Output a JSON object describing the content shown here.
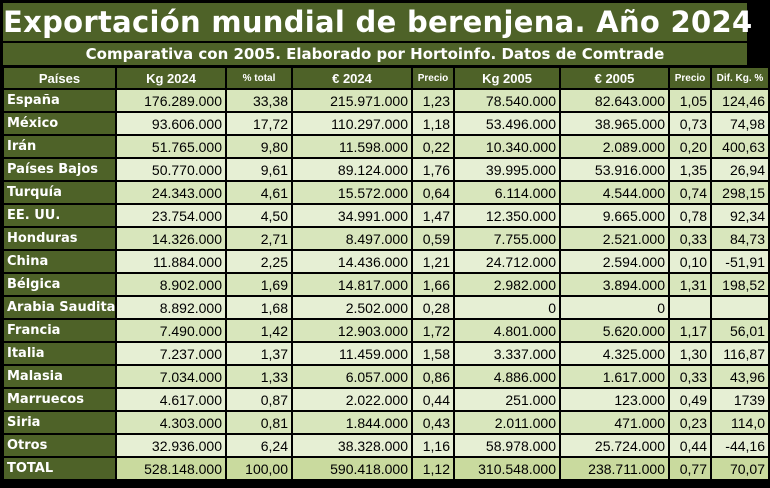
{
  "title": "Exportación mundial de berenjena. Año 2024",
  "subtitle": "Comparativa con 2005. Elaborado por Hortoinfo. Datos de Comtrade",
  "columns": [
    "Países",
    "Kg 2024",
    "% total",
    "€ 2024",
    "Precio",
    "Kg 2005",
    "€ 2005",
    "Precio",
    "Dif. Kg. %"
  ],
  "rows": [
    [
      "España",
      "176.289.000",
      "33,38",
      "215.971.000",
      "1,23",
      "78.540.000",
      "82.643.000",
      "1,05",
      "124,46"
    ],
    [
      "México",
      "93.606.000",
      "17,72",
      "110.297.000",
      "1,18",
      "53.496.000",
      "38.965.000",
      "0,73",
      "74,98"
    ],
    [
      "Irán",
      "51.765.000",
      "9,80",
      "11.598.000",
      "0,22",
      "10.340.000",
      "2.089.000",
      "0,20",
      "400,63"
    ],
    [
      "Países Bajos",
      "50.770.000",
      "9,61",
      "89.124.000",
      "1,76",
      "39.995.000",
      "53.916.000",
      "1,35",
      "26,94"
    ],
    [
      "Turquía",
      "24.343.000",
      "4,61",
      "15.572.000",
      "0,64",
      "6.114.000",
      "4.544.000",
      "0,74",
      "298,15"
    ],
    [
      "EE. UU.",
      "23.754.000",
      "4,50",
      "34.991.000",
      "1,47",
      "12.350.000",
      "9.665.000",
      "0,78",
      "92,34"
    ],
    [
      "Honduras",
      "14.326.000",
      "2,71",
      "8.497.000",
      "0,59",
      "7.755.000",
      "2.521.000",
      "0,33",
      "84,73"
    ],
    [
      "China",
      "11.884.000",
      "2,25",
      "14.436.000",
      "1,21",
      "24.712.000",
      "2.594.000",
      "0,10",
      "-51,91"
    ],
    [
      "Bélgica",
      "8.902.000",
      "1,69",
      "14.817.000",
      "1,66",
      "2.982.000",
      "3.894.000",
      "1,31",
      "198,52"
    ],
    [
      "Arabia Saudita",
      "8.892.000",
      "1,68",
      "2.502.000",
      "0,28",
      "0",
      "0",
      "",
      ""
    ],
    [
      "Francia",
      "7.490.000",
      "1,42",
      "12.903.000",
      "1,72",
      "4.801.000",
      "5.620.000",
      "1,17",
      "56,01"
    ],
    [
      "Italia",
      "7.237.000",
      "1,37",
      "11.459.000",
      "1,58",
      "3.337.000",
      "4.325.000",
      "1,30",
      "116,87"
    ],
    [
      "Malasia",
      "7.034.000",
      "1,33",
      "6.057.000",
      "0,86",
      "4.886.000",
      "1.617.000",
      "0,33",
      "43,96"
    ],
    [
      "Marruecos",
      "4.617.000",
      "0,87",
      "2.022.000",
      "0,44",
      "251.000",
      "123.000",
      "0,49",
      "1739"
    ],
    [
      "Siria",
      "4.303.000",
      "0,81",
      "1.844.000",
      "0,43",
      "2.011.000",
      "471.000",
      "0,23",
      "114,0"
    ],
    [
      "Otros",
      "32.936.000",
      "6,24",
      "38.328.000",
      "1,16",
      "58.978.000",
      "25.724.000",
      "0,44",
      "-44,16"
    ],
    [
      "TOTAL",
      "528.148.000",
      "100,00",
      "590.418.000",
      "1,12",
      "310.548.000",
      "238.711.000",
      "0,77",
      "70,07"
    ]
  ]
}
